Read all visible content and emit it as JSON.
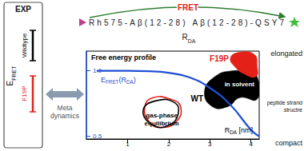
{
  "header": {
    "fret": "FRET",
    "construct": "Rh575-Aβ(12-28) Aβ(12-28)-QSY7",
    "distance": [
      {
        "text": "R"
      },
      {
        "text": "DA",
        "sub": true
      }
    ]
  },
  "exp_panel": {
    "title": "EXP",
    "axis_label": [
      {
        "text": "E"
      },
      {
        "text": "FRET",
        "sub": true
      }
    ],
    "bars": [
      {
        "label": "Wildtype",
        "color": "#000000"
      },
      {
        "label": "F19P",
        "color": "#e32119"
      }
    ]
  },
  "method": [
    "Meta",
    "dynamics"
  ],
  "chart_data": {
    "type": "line",
    "title": "Free energy profile",
    "xlabel": [
      {
        "text": "R"
      },
      {
        "text": "DA",
        "sub": true
      },
      {
        "text": " [nm]"
      }
    ],
    "xlim": [
      0,
      4.2
    ],
    "xticks": [
      1,
      2,
      3,
      4
    ],
    "ylim": [
      0.48,
      1.15
    ],
    "yticks": [
      0.5,
      {
        "value": 1,
        "label": "1.0"
      }
    ],
    "series": [
      {
        "label": [
          {
            "text": "E"
          },
          {
            "text": "FRET",
            "sub": true
          },
          {
            "text": "(R"
          },
          {
            "text": "DA",
            "sub": true
          },
          {
            "text": ")"
          }
        ],
        "color": "#1f4fd6",
        "x": [
          0.25,
          0.5,
          1,
          1.5,
          2,
          2.5,
          3,
          3.5,
          4,
          4.2
        ],
        "values": [
          1,
          1,
          1,
          0.997,
          0.985,
          0.95,
          0.87,
          0.74,
          0.55,
          0.5
        ]
      }
    ],
    "regions": [
      {
        "label": "WT",
        "type": "area",
        "color": "#000000",
        "x": [
          2.87,
          3.12,
          3.54,
          3.92,
          4.15,
          4.15,
          3.73,
          3.44,
          3.06
        ],
        "y": [
          0.841,
          0.955,
          1.0,
          0.983,
          0.955,
          0.784,
          0.795,
          0.727,
          0.727
        ]
      },
      {
        "label": "F19P",
        "type": "area",
        "color": "#e32119",
        "x": [
          3.5,
          3.73,
          4.08,
          4.15,
          4.12,
          3.83,
          3.63
        ],
        "y": [
          1.097,
          1.142,
          1.125,
          1.04,
          0.955,
          0.977,
          1.023
        ]
      },
      {
        "type": "line",
        "color": "#e32119",
        "x": [
          1.42,
          1.62,
          2.04,
          2.29,
          2.19,
          1.81,
          1.52
        ],
        "y": [
          0.727,
          0.795,
          0.784,
          0.727,
          0.614,
          0.568,
          0.614
        ]
      },
      {
        "type": "line",
        "color": "#000000",
        "x": [
          1.38,
          1.71,
          2.15,
          2.23,
          2.0,
          1.62
        ],
        "y": [
          0.699,
          0.773,
          0.756,
          0.67,
          0.585,
          0.585
        ]
      }
    ],
    "annotations": [
      {
        "text": [
          "in solvent"
        ],
        "color": "#ffffff"
      },
      {
        "text": [
          "gas-phase",
          "equilibrium"
        ],
        "color": "#000000"
      }
    ]
  },
  "structure_labels": [
    [
      "elongated"
    ],
    [
      "peptide strand",
      "structre"
    ],
    [
      "compact"
    ]
  ]
}
